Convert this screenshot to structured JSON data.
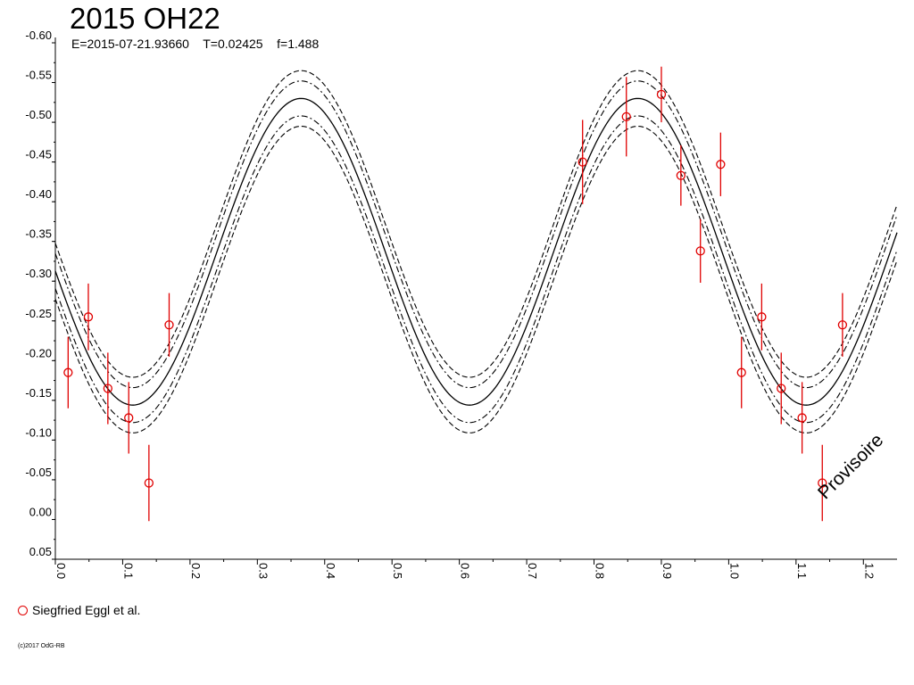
{
  "title": "2015 OH22",
  "subtitle": "E=2015-07-21.93660    T=0.02425    f=1.488",
  "legend_label": "Siegfried Eggl et al.",
  "copyright": "(c)2017 OdG-RB",
  "watermark": "Provisoire",
  "colors": {
    "points": "#e00000",
    "curve": "#000000"
  },
  "chart_data": {
    "type": "scatter",
    "title": "2015 OH22",
    "xlabel": "",
    "ylabel": "",
    "xlim": [
      0.0,
      1.25
    ],
    "ylim": [
      0.05,
      -0.6
    ],
    "y_inverted": true,
    "x_ticks": [
      "0.0",
      "0.1",
      "0.2",
      "0.3",
      "0.4",
      "0.5",
      "0.6",
      "0.7",
      "0.8",
      "0.9",
      "1.0",
      "1.1",
      "1.2"
    ],
    "y_ticks": [
      "-0.60",
      "-0.55",
      "-0.50",
      "-0.45",
      "-0.40",
      "-0.35",
      "-0.30",
      "-0.25",
      "-0.20",
      "-0.15",
      "-0.10",
      "-0.05",
      "0.00",
      "0.05"
    ],
    "grid": false,
    "legend_position": "bottom-left",
    "model": {
      "mean": -0.337,
      "amplitude": 0.193,
      "period": 0.5,
      "phase_max": 0.365,
      "bands": [
        {
          "style": "dash-dot",
          "offset": -0.022
        },
        {
          "style": "dash-dot",
          "offset": 0.022
        },
        {
          "style": "dashed",
          "offset": -0.035
        },
        {
          "style": "dashed",
          "offset": 0.035
        }
      ]
    },
    "series": [
      {
        "name": "Siegfried Eggl et al.",
        "points": [
          {
            "x": 0.019,
            "y": -0.185,
            "err": 0.045
          },
          {
            "x": 0.049,
            "y": -0.255,
            "err": 0.042
          },
          {
            "x": 0.078,
            "y": -0.165,
            "err": 0.045
          },
          {
            "x": 0.109,
            "y": -0.128,
            "err": 0.045
          },
          {
            "x": 0.139,
            "y": -0.046,
            "err": 0.048
          },
          {
            "x": 0.169,
            "y": -0.245,
            "err": 0.04
          },
          {
            "x": 0.783,
            "y": -0.45,
            "err": 0.053
          },
          {
            "x": 0.848,
            "y": -0.507,
            "err": 0.05
          },
          {
            "x": 0.9,
            "y": -0.535,
            "err": 0.035
          },
          {
            "x": 0.929,
            "y": -0.433,
            "err": 0.038
          },
          {
            "x": 0.958,
            "y": -0.338,
            "err": 0.04
          },
          {
            "x": 0.988,
            "y": -0.447,
            "err": 0.04
          },
          {
            "x": 1.019,
            "y": -0.185,
            "err": 0.045
          },
          {
            "x": 1.049,
            "y": -0.255,
            "err": 0.042
          },
          {
            "x": 1.078,
            "y": -0.165,
            "err": 0.045
          },
          {
            "x": 1.109,
            "y": -0.128,
            "err": 0.045
          },
          {
            "x": 1.139,
            "y": -0.046,
            "err": 0.048
          },
          {
            "x": 1.169,
            "y": -0.245,
            "err": 0.04
          }
        ]
      }
    ]
  }
}
